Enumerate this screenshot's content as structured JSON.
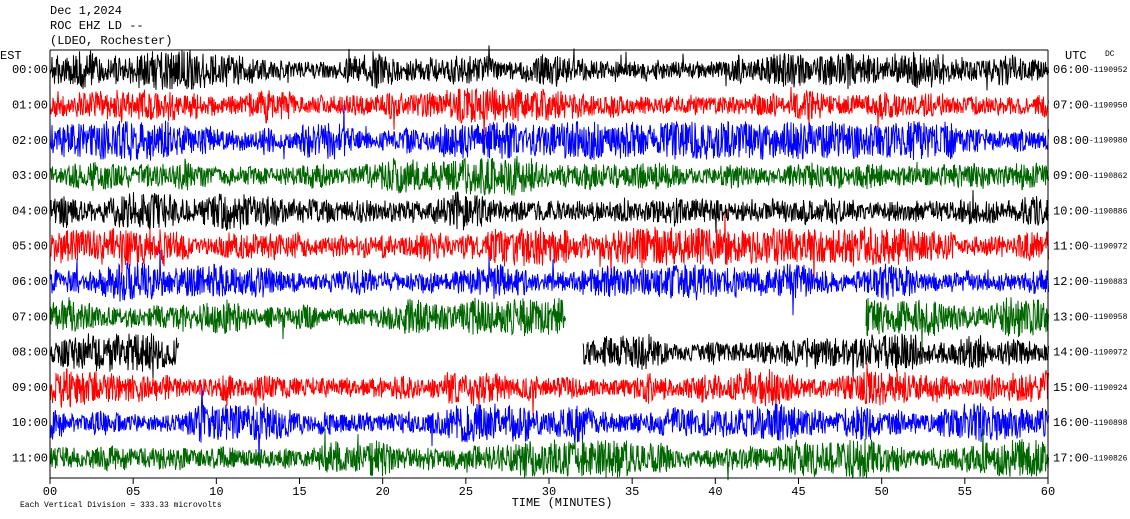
{
  "chart_data": {
    "type": "helicorder",
    "title_lines": [
      "Dec 1,2024",
      "ROC EHZ LD --",
      "(LDEO, Rochester)"
    ],
    "left_axis_label": "EST",
    "right_axis_label": "UTC",
    "right_note": "DC",
    "x_label": "TIME (MINUTES)",
    "footer": "Each Vertical Division =  333.33 microvolts",
    "xlim": [
      0,
      60
    ],
    "xticks": [
      {
        "value": 0,
        "label": "00"
      },
      {
        "value": 5,
        "label": "05"
      },
      10,
      15,
      20,
      25,
      30,
      35,
      40,
      45,
      50,
      55,
      60
    ],
    "rows": [
      {
        "est": "00:00",
        "utc": "06:00",
        "dc": "-1190952",
        "color": "#000000"
      },
      {
        "est": "01:00",
        "utc": "07:00",
        "dc": "-1190950",
        "color": "#ff0000"
      },
      {
        "est": "02:00",
        "utc": "08:00",
        "dc": "-1190980",
        "color": "#0000ff"
      },
      {
        "est": "03:00",
        "utc": "09:00",
        "dc": "-1190862",
        "color": "#006600"
      },
      {
        "est": "04:00",
        "utc": "10:00",
        "dc": "-1190886",
        "color": "#000000"
      },
      {
        "est": "05:00",
        "utc": "11:00",
        "dc": "-1190972",
        "color": "#ff0000"
      },
      {
        "est": "06:00",
        "utc": "12:00",
        "dc": "-1190883",
        "color": "#0000ff"
      },
      {
        "est": "07:00",
        "utc": "13:00",
        "dc": "-1190958",
        "color": "#006600",
        "gaps": [
          [
            31,
            49
          ]
        ]
      },
      {
        "est": "08:00",
        "utc": "14:00",
        "dc": "-1190972",
        "color": "#000000",
        "gaps": [
          [
            7.7,
            32
          ]
        ]
      },
      {
        "est": "09:00",
        "utc": "15:00",
        "dc": "-1190924",
        "color": "#ff0000"
      },
      {
        "est": "10:00",
        "utc": "16:00",
        "dc": "-1190898",
        "color": "#0000ff"
      },
      {
        "est": "11:00",
        "utc": "17:00",
        "dc": "-1190826",
        "color": "#006600"
      }
    ]
  }
}
